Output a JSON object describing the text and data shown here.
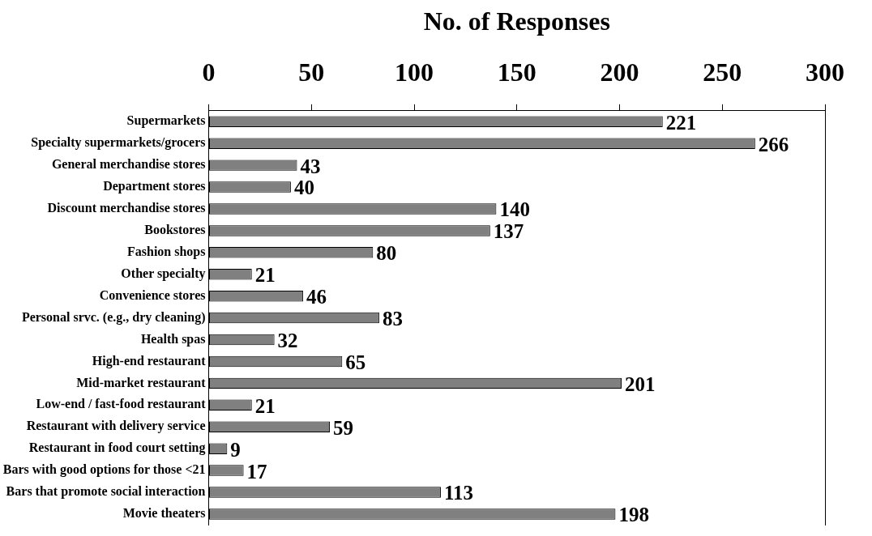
{
  "chart_data": {
    "type": "bar",
    "orientation": "horizontal",
    "xlabel": "No. of Responses",
    "categories": [
      "Supermarkets",
      "Specialty supermarkets/grocers",
      "General merchandise stores",
      "Department stores",
      "Discount merchandise stores",
      "Bookstores",
      "Fashion shops",
      "Other specialty",
      "Convenience stores",
      "Personal srvc. (e.g., dry cleaning)",
      "Health spas",
      "High-end restaurant",
      "Mid-market restaurant",
      "Low-end / fast-food restaurant",
      "Restaurant with delivery service",
      "Restaurant in food court setting",
      "Bars with good options for those <21",
      "Bars that promote social interaction",
      "Movie theaters"
    ],
    "values": [
      221,
      266,
      43,
      40,
      140,
      137,
      80,
      21,
      46,
      83,
      32,
      65,
      201,
      21,
      59,
      9,
      17,
      113,
      198
    ],
    "color": "#808080",
    "xlim": [
      0,
      300
    ],
    "xticks": [
      0,
      50,
      100,
      150,
      200,
      250,
      300
    ],
    "data_labels": true,
    "grid": false,
    "legend": false
  }
}
